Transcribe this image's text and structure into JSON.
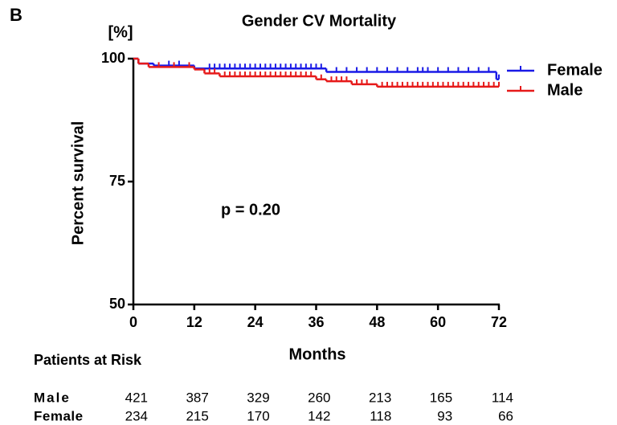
{
  "chart_data": {
    "type": "step",
    "panel_label": "B",
    "title": "Gender CV Mortality",
    "y_unit": "[%]",
    "xlabel": "Months",
    "ylabel": "Percent survival",
    "annotation": "p = 0.20",
    "xlim": [
      0,
      72
    ],
    "xticks": [
      0,
      12,
      24,
      36,
      48,
      60,
      72
    ],
    "ylim": [
      50,
      100
    ],
    "yticks": [
      50,
      75,
      100
    ],
    "legend": "right-outside",
    "series": [
      {
        "name": "Female",
        "color": "#1a1ae6",
        "x": [
          0,
          1,
          4,
          12,
          38,
          71.5
        ],
        "values": [
          100,
          99,
          98.6,
          98,
          97.3,
          95.8
        ],
        "censored": [
          7,
          9,
          15,
          16,
          17,
          18,
          19,
          20,
          21,
          22,
          23,
          24,
          25,
          26,
          27,
          28,
          29,
          30,
          31,
          32,
          33,
          34,
          35,
          36,
          37,
          40,
          42,
          44,
          46,
          48,
          50,
          52,
          54,
          56,
          57,
          58,
          60,
          62,
          64,
          66,
          68,
          70,
          72
        ]
      },
      {
        "name": "Male",
        "color": "#e61a1a",
        "x": [
          0,
          1,
          3,
          12,
          14,
          17,
          36,
          38,
          43,
          48
        ],
        "values": [
          100,
          99,
          98.3,
          97.8,
          97,
          96.4,
          95.8,
          95.4,
          94.8,
          94.3
        ],
        "censored": [
          5,
          8,
          11,
          15,
          16,
          18,
          19,
          20,
          21,
          22,
          23,
          24,
          25,
          26,
          27,
          28,
          29,
          30,
          31,
          32,
          33,
          34,
          35,
          37,
          39,
          40,
          41,
          42,
          44,
          45,
          46,
          49,
          50,
          51,
          52,
          53,
          54,
          55,
          56,
          57,
          58,
          59,
          60,
          61,
          62,
          63,
          64,
          65,
          66,
          67,
          68,
          69,
          70,
          71,
          72
        ]
      }
    ],
    "risk_table": {
      "title": "Patients at Risk",
      "rows": [
        {
          "name": "Male",
          "values": [
            421,
            387,
            329,
            260,
            213,
            165,
            114
          ]
        },
        {
          "name": "Female",
          "values": [
            234,
            215,
            170,
            142,
            118,
            93,
            66
          ]
        }
      ]
    }
  }
}
